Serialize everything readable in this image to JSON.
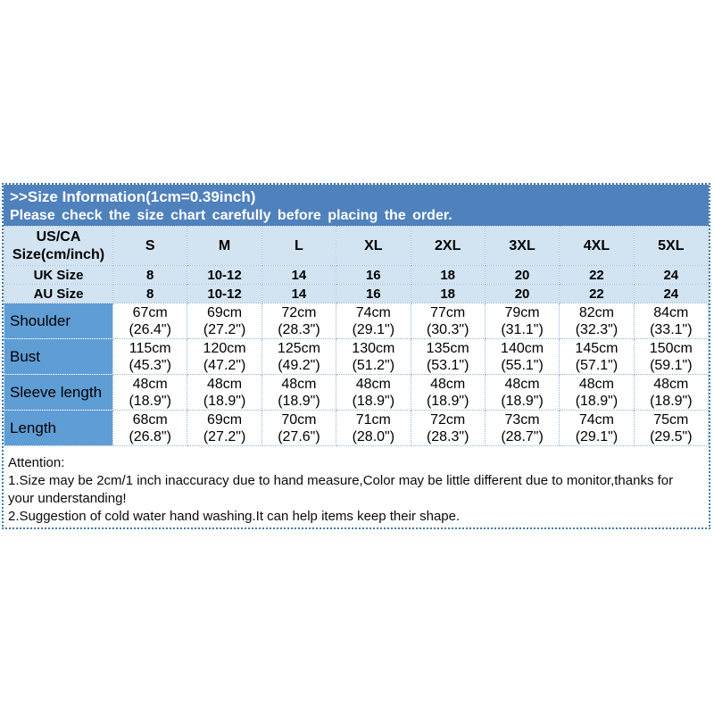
{
  "banner": {
    "title": ">>Size Information(1cm=0.39inch)",
    "subtitle": "Please check the size chart carefully before placing the order.",
    "bg_color": "#4f81bd",
    "text_color": "#ffffff"
  },
  "size_table": {
    "corner": {
      "line1": "US/CA",
      "line2": "Size(cm/inch)"
    },
    "size_headers": [
      "S",
      "M",
      "L",
      "XL",
      "2XL",
      "3XL",
      "4XL",
      "5XL"
    ],
    "uk_row": {
      "label": "UK Size",
      "values": [
        "8",
        "10-12",
        "14",
        "16",
        "18",
        "20",
        "22",
        "24"
      ]
    },
    "au_row": {
      "label": "AU Size",
      "values": [
        "8",
        "10-12",
        "14",
        "16",
        "18",
        "20",
        "22",
        "24"
      ]
    },
    "measurement_rows": [
      {
        "label": "Shoulder",
        "values": [
          {
            "cm": "67cm",
            "inch": "(26.4\")"
          },
          {
            "cm": "69cm",
            "inch": "(27.2\")"
          },
          {
            "cm": "72cm",
            "inch": "(28.3\")"
          },
          {
            "cm": "74cm",
            "inch": "(29.1\")"
          },
          {
            "cm": "77cm",
            "inch": "(30.3\")"
          },
          {
            "cm": "79cm",
            "inch": "(31.1\")"
          },
          {
            "cm": "82cm",
            "inch": "(32.3\")"
          },
          {
            "cm": "84cm",
            "inch": "(33.1\")"
          }
        ]
      },
      {
        "label": "Bust",
        "values": [
          {
            "cm": "115cm",
            "inch": "(45.3\")"
          },
          {
            "cm": "120cm",
            "inch": "(47.2\")"
          },
          {
            "cm": "125cm",
            "inch": "(49.2\")"
          },
          {
            "cm": "130cm",
            "inch": "(51.2\")"
          },
          {
            "cm": "135cm",
            "inch": "(53.1\")"
          },
          {
            "cm": "140cm",
            "inch": "(55.1\")"
          },
          {
            "cm": "145cm",
            "inch": "(57.1\")"
          },
          {
            "cm": "150cm",
            "inch": "(59.1\")"
          }
        ]
      },
      {
        "label": "Sleeve length",
        "values": [
          {
            "cm": "48cm",
            "inch": "(18.9\")"
          },
          {
            "cm": "48cm",
            "inch": "(18.9\")"
          },
          {
            "cm": "48cm",
            "inch": "(18.9\")"
          },
          {
            "cm": "48cm",
            "inch": "(18.9\")"
          },
          {
            "cm": "48cm",
            "inch": "(18.9\")"
          },
          {
            "cm": "48cm",
            "inch": "(18.9\")"
          },
          {
            "cm": "48cm",
            "inch": "(18.9\")"
          },
          {
            "cm": "48cm",
            "inch": "(18.9\")"
          }
        ]
      },
      {
        "label": "Length",
        "values": [
          {
            "cm": "68cm",
            "inch": "(26.8\")"
          },
          {
            "cm": "69cm",
            "inch": "(27.2\")"
          },
          {
            "cm": "70cm",
            "inch": "(27.6\")"
          },
          {
            "cm": "71cm",
            "inch": "(28.0\")"
          },
          {
            "cm": "72cm",
            "inch": "(28.3\")"
          },
          {
            "cm": "73cm",
            "inch": "(28.7\")"
          },
          {
            "cm": "74cm",
            "inch": "(29.1\")"
          },
          {
            "cm": "75cm",
            "inch": "(29.5\")"
          }
        ]
      }
    ],
    "colors": {
      "light_row_bg": "#d2e3f1",
      "label_cell_bg": "#5f9dd5",
      "value_cell_bg": "#ffffff",
      "grid_border": "#92b6d8",
      "frame_border": "#3e7ba9",
      "text": "#000000"
    }
  },
  "attention": {
    "heading": "Attention:",
    "notes": [
      "1.Size may be 2cm/1 inch inaccuracy due to hand measure,Color may be little different due to monitor,thanks for your understanding!",
      "2.Suggestion of cold water hand washing.It can help items keep their shape."
    ]
  }
}
